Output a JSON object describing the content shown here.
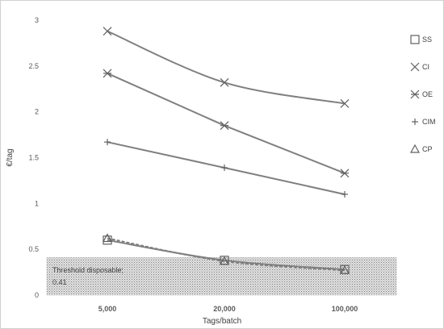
{
  "chart_data": {
    "type": "line",
    "title": "",
    "xlabel": "Tags/batch",
    "ylabel": "€/tag",
    "categories": [
      "5,000",
      "20,000",
      "100,000"
    ],
    "ylim": [
      0,
      3
    ],
    "yticks": [
      "0",
      "0.5",
      "1",
      "1.5",
      "2",
      "2.5",
      "3"
    ],
    "grid": false,
    "legend_position": "right",
    "series": [
      {
        "name": "SS",
        "values": [
          0.6,
          0.38,
          0.28
        ],
        "marker": "square",
        "color": "#7f7f7f"
      },
      {
        "name": "CI",
        "values": [
          2.88,
          2.32,
          2.09
        ],
        "marker": "x",
        "color": "#7f7f7f"
      },
      {
        "name": "OE",
        "values": [
          2.42,
          1.85,
          1.33
        ],
        "marker": "asterisk",
        "color": "#7f7f7f"
      },
      {
        "name": "CIM",
        "values": [
          1.67,
          1.39,
          1.1
        ],
        "marker": "plus",
        "color": "#7f7f7f"
      },
      {
        "name": "CP",
        "values": [
          0.62,
          0.37,
          0.27
        ],
        "marker": "triangle",
        "color": "#7f7f7f"
      }
    ],
    "threshold": {
      "value": 0.41,
      "label_line1": "Threshold disposable;",
      "label_line2": "0.41",
      "color": "#bfbfbf"
    }
  }
}
